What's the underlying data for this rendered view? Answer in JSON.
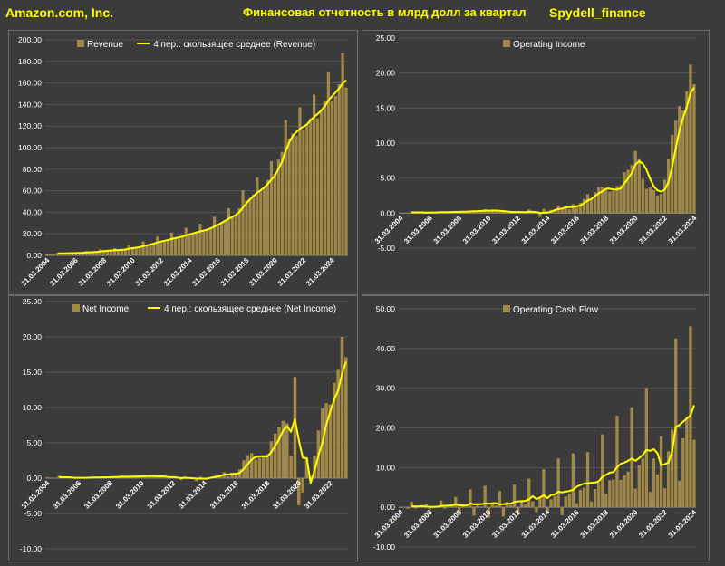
{
  "header": {
    "company": "Amazon.com, Inc.",
    "title": "Финансовая отчетность в млрд долл за квартал",
    "brand": "Spydell_finance"
  },
  "colors": {
    "bar": "#a08848",
    "line": "#ffff00",
    "grid": "#555555",
    "text": "#ffffff"
  },
  "x_tick_labels": [
    "31.03.2004",
    "31.03.2006",
    "31.03.2008",
    "31.03.2010",
    "31.03.2012",
    "31.03.2014",
    "31.03.2016",
    "31.03.2018",
    "31.03.2020",
    "31.03.2022",
    "31.03.2024"
  ],
  "chart_data": [
    {
      "type": "bar",
      "id": "revenue",
      "series": [
        {
          "name": "Revenue",
          "kind": "bar",
          "values": [
            1.53,
            1.39,
            1.46,
            2.54,
            1.9,
            1.75,
            1.86,
            2.98,
            2.28,
            2.14,
            2.31,
            3.99,
            3.02,
            2.89,
            3.26,
            5.67,
            4.13,
            4.06,
            4.26,
            6.7,
            4.89,
            4.65,
            5.45,
            9.52,
            7.13,
            6.57,
            7.56,
            12.95,
            9.86,
            9.91,
            10.88,
            17.43,
            13.18,
            12.83,
            13.81,
            21.27,
            16.07,
            15.7,
            17.09,
            25.59,
            19.74,
            19.34,
            20.58,
            29.33,
            22.72,
            23.19,
            25.36,
            35.75,
            29.13,
            30.4,
            32.71,
            43.74,
            35.71,
            37.96,
            43.74,
            60.45,
            51.04,
            52.89,
            56.58,
            72.38,
            59.7,
            63.4,
            69.98,
            87.44,
            75.45,
            88.91,
            96.15,
            125.56,
            108.52,
            113.08,
            110.81,
            137.41,
            116.44,
            121.23,
            127.1,
            149.2,
            127.36,
            134.38,
            143.08,
            169.96,
            143.31,
            147.98,
            158.88,
            187.79,
            155.67
          ]
        },
        {
          "name": "4 пер.: скользящее среднее (Revenue)",
          "kind": "line",
          "window": 4
        }
      ],
      "ylim": [
        0,
        200
      ],
      "ytick_step": 20,
      "ytick_decimals": 2
    },
    {
      "type": "bar",
      "id": "operating_income",
      "series": [
        {
          "name": "Operating Income",
          "kind": "bar",
          "values": [
            0.06,
            0.05,
            0.06,
            0.26,
            0.07,
            0.05,
            0.05,
            0.17,
            0.1,
            0.08,
            0.1,
            0.25,
            0.14,
            0.12,
            0.12,
            0.3,
            0.2,
            0.15,
            0.2,
            0.38,
            0.35,
            0.25,
            0.27,
            0.55,
            0.35,
            0.27,
            0.3,
            0.37,
            0.19,
            0.11,
            0.08,
            0.26,
            0.19,
            0.11,
            -0.03,
            0.51,
            0.15,
            0.02,
            -0.54,
            0.59,
            0.26,
            0.46,
            0.41,
            1.11,
            0.6,
            1.07,
            0.58,
            1.29,
            1.0,
            1.44,
            2.03,
            2.71,
            1.93,
            3.0,
            3.72,
            3.79,
            3.4,
            3.08,
            3.16,
            3.87,
            3.99,
            5.84,
            6.19,
            6.87,
            8.87,
            7.7,
            4.85,
            3.46,
            3.67,
            3.32,
            2.53,
            2.74,
            4.77,
            7.68,
            11.19,
            13.21,
            15.31,
            14.67,
            17.41,
            21.2,
            18.41
          ]
        },
        {
          "name": "4 пер.: скользящее среднее (Operating Income)",
          "kind": "line",
          "window": 4,
          "show_in_legend": false
        }
      ],
      "ylim": [
        -5,
        25
      ],
      "ytick_step": 5,
      "ytick_decimals": 2
    },
    {
      "type": "bar",
      "id": "net_income",
      "series": [
        {
          "name": "Net Income",
          "kind": "bar",
          "values": [
            0.11,
            0.08,
            0.05,
            0.35,
            0.05,
            0.05,
            0.02,
            0.1,
            0.05,
            0.02,
            0.04,
            0.2,
            0.11,
            0.08,
            0.08,
            0.21,
            0.14,
            0.16,
            0.12,
            0.38,
            0.18,
            0.14,
            0.2,
            0.38,
            0.3,
            0.21,
            0.23,
            0.42,
            0.2,
            0.19,
            0.06,
            0.18,
            0.13,
            0.01,
            -0.27,
            0.24,
            0.11,
            -0.13,
            -0.44,
            0.21,
            0.06,
            0.09,
            0.08,
            0.48,
            0.51,
            0.86,
            0.25,
            0.75,
            0.72,
            1.28,
            2.53,
            3.27,
            3.56,
            2.63,
            2.88,
            3.27,
            3.4,
            5.24,
            6.33,
            7.22,
            8.11,
            7.78,
            3.16,
            14.32,
            -3.84,
            -2.03,
            2.87,
            0.28,
            3.17,
            6.75,
            9.88,
            10.62,
            10.43,
            13.49,
            15.33,
            20.0,
            17.13
          ]
        },
        {
          "name": "4 пер.: скользящее среднее (Net Income)",
          "kind": "line",
          "window": 4
        }
      ],
      "ylim": [
        -10,
        25
      ],
      "ytick_step": 5,
      "ytick_decimals": 2
    },
    {
      "type": "bar",
      "id": "operating_cash_flow",
      "series": [
        {
          "name": "Operating Cash Flow",
          "kind": "bar",
          "values": [
            -0.14,
            0.08,
            -0.36,
            1.44,
            -0.3,
            0.1,
            -0.03,
            0.94,
            -0.5,
            0.03,
            0.12,
            1.72,
            -0.35,
            0.33,
            0.27,
            2.6,
            -1.3,
            0.42,
            0.19,
            4.51,
            -2.14,
            0.55,
            0.17,
            5.4,
            -2.6,
            1.0,
            0.45,
            4.1,
            -2.35,
            1.4,
            0.62,
            5.7,
            -1.7,
            1.6,
            0.89,
            7.2,
            1.5,
            -1.2,
            2.3,
            9.6,
            -1.5,
            2.0,
            2.8,
            12.3,
            -2.0,
            2.7,
            3.4,
            13.6,
            1.0,
            4.4,
            4.9,
            13.9,
            1.5,
            4.6,
            6.2,
            18.4,
            3.4,
            6.8,
            7.0,
            23.1,
            6.9,
            8.0,
            9.0,
            25.2,
            4.7,
            10.6,
            12.3,
            30.1,
            3.9,
            12.3,
            8.3,
            17.9,
            4.8,
            14.1,
            19.6,
            42.5,
            6.7,
            17.4,
            22.8,
            45.6,
            17.0
          ]
        },
        {
          "name": "4 пер.: скользящее среднее (Operating Cash Flow)",
          "kind": "line",
          "window": 4,
          "show_in_legend": false
        }
      ],
      "ylim": [
        -10,
        50
      ],
      "ytick_step": 10,
      "ytick_decimals": 2
    }
  ]
}
